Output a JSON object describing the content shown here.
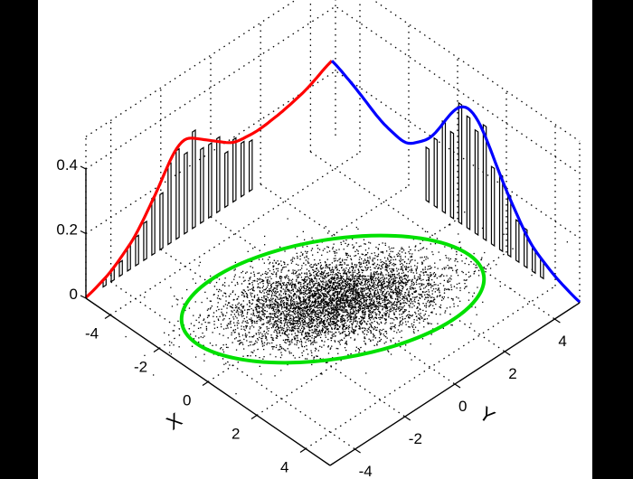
{
  "chart_data": {
    "type": "scatter",
    "subtype": "3d bivariate normal scatter with marginal histograms and density curves",
    "title": "",
    "xlabel": "X",
    "ylabel": "Y",
    "zlabel": "",
    "x_ticks": [
      "-4",
      "-2",
      "0",
      "2",
      "4"
    ],
    "y_ticks": [
      "-4",
      "-2",
      "0",
      "2",
      "4"
    ],
    "z_ticks": [
      "0",
      "0.2",
      "0.4"
    ],
    "xlim": [
      -5,
      5
    ],
    "ylim": [
      -5,
      5
    ],
    "zlim": [
      0,
      0.5
    ],
    "grid": true,
    "legend": null,
    "series": [
      {
        "name": "samples",
        "kind": "scatter",
        "color": "#000000",
        "description": "dense cloud of points centered near (0,0), elongated along the X-Y diagonal"
      },
      {
        "name": "confidence ellipse",
        "kind": "ellipse",
        "color": "#00e000"
      },
      {
        "name": "X marginal density",
        "kind": "line",
        "color": "#ff0000",
        "x": [
          -5,
          -4,
          -3,
          -2,
          -1.5,
          -1,
          0,
          1,
          2,
          3,
          4,
          5
        ],
        "values": [
          0.0,
          0.03,
          0.09,
          0.2,
          0.27,
          0.3,
          0.24,
          0.18,
          0.17,
          0.18,
          0.2,
          0.24
        ]
      },
      {
        "name": "X marginal histogram",
        "kind": "bar",
        "color": "#ffffff",
        "edgecolor": "#000000"
      },
      {
        "name": "Y marginal density",
        "kind": "line",
        "color": "#0000ff",
        "x": [
          -5,
          -4,
          -3,
          -2,
          -1,
          0,
          0.5,
          1,
          2,
          3,
          4,
          5
        ],
        "values": [
          0.24,
          0.2,
          0.15,
          0.13,
          0.2,
          0.35,
          0.38,
          0.35,
          0.2,
          0.08,
          0.03,
          0.0
        ]
      },
      {
        "name": "Y marginal histogram",
        "kind": "bar",
        "color": "#ffffff",
        "edgecolor": "#000000"
      }
    ]
  },
  "figure": {
    "background": "#000000",
    "plot_background": "#ffffff"
  }
}
